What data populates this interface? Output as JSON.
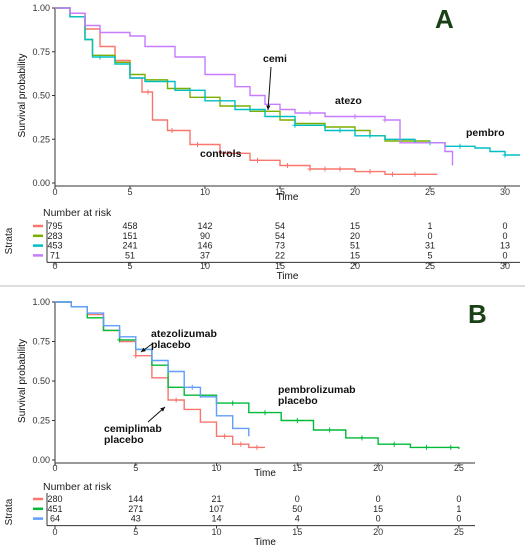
{
  "chart_data": [
    {
      "type": "line",
      "panel_label": "A",
      "ylabel": "Survival probability",
      "xlabel": "Time",
      "xlim": [
        0,
        31
      ],
      "ylim": [
        0,
        1
      ],
      "x_ticks": [
        0,
        5,
        10,
        15,
        20,
        25,
        30
      ],
      "y_ticks": [
        "0.00",
        "0.25",
        "0.50",
        "0.75",
        "1.00"
      ],
      "series": [
        {
          "label": "controls",
          "color": "#f8766d",
          "points": [
            [
              0,
              1
            ],
            [
              1,
              0.97
            ],
            [
              2,
              0.88
            ],
            [
              3,
              0.78
            ],
            [
              4,
              0.7
            ],
            [
              5,
              0.6
            ],
            [
              5.8,
              0.52
            ],
            [
              6.5,
              0.36
            ],
            [
              7.5,
              0.3
            ],
            [
              9,
              0.22
            ],
            [
              11,
              0.17
            ],
            [
              13,
              0.13
            ],
            [
              15,
              0.1
            ],
            [
              17,
              0.08
            ],
            [
              20,
              0.065
            ],
            [
              22,
              0.05
            ],
            [
              25.5,
              0.05
            ]
          ],
          "censor": [
            6.2,
            7.8,
            9.5,
            11.5,
            13.5,
            15.5,
            17,
            18,
            19,
            21,
            22.5,
            24
          ]
        },
        {
          "label": "cemi",
          "color": "#7cae00",
          "points": [
            [
              0,
              1
            ],
            [
              1,
              0.95
            ],
            [
              2,
              0.82
            ],
            [
              2.5,
              0.73
            ],
            [
              4,
              0.69
            ],
            [
              5,
              0.62
            ],
            [
              6,
              0.59
            ],
            [
              7.5,
              0.54
            ],
            [
              9,
              0.49
            ],
            [
              11,
              0.44
            ],
            [
              13,
              0.41
            ],
            [
              15,
              0.36
            ],
            [
              16,
              0.34
            ],
            [
              18,
              0.32
            ],
            [
              20,
              0.3
            ],
            [
              21,
              0.27
            ],
            [
              22,
              0.24
            ],
            [
              25,
              0.24
            ]
          ],
          "censor": [
            10,
            14
          ]
        },
        {
          "label": "pembro",
          "color": "#00bfc4",
          "points": [
            [
              0,
              1
            ],
            [
              1,
              0.95
            ],
            [
              2,
              0.82
            ],
            [
              2.5,
              0.72
            ],
            [
              4,
              0.68
            ],
            [
              5,
              0.6
            ],
            [
              6,
              0.58
            ],
            [
              8,
              0.53
            ],
            [
              10,
              0.47
            ],
            [
              12,
              0.42
            ],
            [
              14,
              0.38
            ],
            [
              16,
              0.33
            ],
            [
              18,
              0.3
            ],
            [
              20,
              0.27
            ],
            [
              22,
              0.25
            ],
            [
              24,
              0.23
            ],
            [
              26,
              0.21
            ],
            [
              28,
              0.2
            ],
            [
              29,
              0.18
            ],
            [
              30,
              0.16
            ],
            [
              31,
              0.16
            ]
          ],
          "censor": [
            3,
            9,
            13,
            16,
            19,
            21,
            25,
            27,
            30
          ]
        },
        {
          "label": "atezo",
          "color": "#c77cff",
          "points": [
            [
              0,
              1
            ],
            [
              1,
              0.97
            ],
            [
              2,
              0.9
            ],
            [
              3,
              0.86
            ],
            [
              5,
              0.84
            ],
            [
              6,
              0.78
            ],
            [
              8,
              0.72
            ],
            [
              10,
              0.62
            ],
            [
              12,
              0.55
            ],
            [
              13,
              0.5
            ],
            [
              14,
              0.45
            ],
            [
              15,
              0.42
            ],
            [
              16,
              0.4
            ],
            [
              18,
              0.38
            ],
            [
              20,
              0.38
            ],
            [
              22,
              0.36
            ],
            [
              23,
              0.23
            ],
            [
              25,
              0.23
            ],
            [
              26,
              0.18
            ],
            [
              26.5,
              0.1
            ]
          ],
          "censor": [
            17,
            20,
            22
          ]
        }
      ],
      "annotations": [
        "cemi",
        "atezo",
        "pembro",
        "controls"
      ],
      "risk_table": {
        "title": "Number at risk",
        "strata_label": "Strata",
        "times": [
          0,
          5,
          10,
          15,
          20,
          25,
          30
        ],
        "rows": [
          {
            "color": "#f8766d",
            "values": [
              795,
              458,
              142,
              54,
              15,
              1,
              0
            ]
          },
          {
            "color": "#7cae00",
            "values": [
              283,
              151,
              90,
              54,
              20,
              0,
              0
            ]
          },
          {
            "color": "#00bfc4",
            "values": [
              453,
              241,
              146,
              73,
              51,
              31,
              13
            ]
          },
          {
            "color": "#c77cff",
            "values": [
              71,
              51,
              37,
              22,
              15,
              5,
              0
            ]
          }
        ]
      }
    },
    {
      "type": "line",
      "panel_label": "B",
      "ylabel": "Survival probability",
      "xlabel": "Time",
      "xlim": [
        0,
        26
      ],
      "ylim": [
        0,
        1
      ],
      "x_ticks": [
        0,
        5,
        10,
        15,
        20,
        25
      ],
      "y_ticks": [
        "0.00",
        "0.25",
        "0.50",
        "0.75",
        "1.00"
      ],
      "series": [
        {
          "label": "cemiplimab placebo",
          "color": "#f8766d",
          "points": [
            [
              0,
              1
            ],
            [
              1,
              0.97
            ],
            [
              2,
              0.92
            ],
            [
              3,
              0.82
            ],
            [
              4,
              0.75
            ],
            [
              5,
              0.66
            ],
            [
              6,
              0.52
            ],
            [
              7,
              0.38
            ],
            [
              8,
              0.32
            ],
            [
              9,
              0.24
            ],
            [
              10,
              0.15
            ],
            [
              11,
              0.1
            ],
            [
              12,
              0.08
            ],
            [
              13,
              0.08
            ]
          ],
          "censor": [
            5,
            7.5,
            10.5,
            11.5,
            12.5
          ]
        },
        {
          "label": "pembrolizumab placebo",
          "color": "#00ba38",
          "points": [
            [
              0,
              1
            ],
            [
              1,
              0.97
            ],
            [
              2,
              0.9
            ],
            [
              3,
              0.82
            ],
            [
              4,
              0.76
            ],
            [
              5,
              0.7
            ],
            [
              6,
              0.6
            ],
            [
              7,
              0.46
            ],
            [
              8,
              0.41
            ],
            [
              10,
              0.36
            ],
            [
              12,
              0.3
            ],
            [
              14,
              0.25
            ],
            [
              16,
              0.19
            ],
            [
              18,
              0.14
            ],
            [
              20,
              0.1
            ],
            [
              22,
              0.08
            ],
            [
              25,
              0.07
            ]
          ],
          "censor": [
            4,
            9,
            11,
            13,
            15,
            17,
            19,
            21,
            23,
            24.5
          ]
        },
        {
          "label": "atezolizumab placebo",
          "color": "#619cff",
          "points": [
            [
              0,
              1
            ],
            [
              1,
              0.97
            ],
            [
              2,
              0.93
            ],
            [
              3,
              0.85
            ],
            [
              4,
              0.78
            ],
            [
              5,
              0.7
            ],
            [
              6,
              0.63
            ],
            [
              7,
              0.56
            ],
            [
              8,
              0.46
            ],
            [
              9,
              0.4
            ],
            [
              10,
              0.28
            ],
            [
              11,
              0.2
            ],
            [
              12,
              0.15
            ]
          ],
          "censor": [
            8.5
          ]
        }
      ],
      "annotations": [
        "atezolizumab\nplacebo",
        "pembrolizumab\nplacebo",
        "cemiplimab\nplacebo"
      ],
      "risk_table": {
        "title": "Number at risk",
        "strata_label": "Strata",
        "times": [
          0,
          5,
          10,
          15,
          20,
          25
        ],
        "rows": [
          {
            "color": "#f8766d",
            "values": [
              280,
              144,
              21,
              0,
              0,
              0
            ]
          },
          {
            "color": "#00ba38",
            "values": [
              451,
              271,
              107,
              50,
              15,
              1
            ]
          },
          {
            "color": "#619cff",
            "values": [
              64,
              43,
              14,
              4,
              0,
              0
            ]
          }
        ]
      }
    }
  ]
}
